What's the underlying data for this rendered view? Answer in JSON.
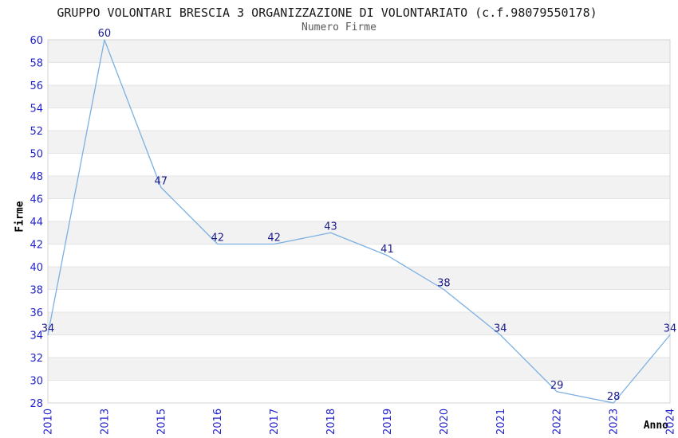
{
  "chart_data": {
    "type": "line",
    "title": "GRUPPO VOLONTARI BRESCIA 3 ORGANIZZAZIONE DI VOLONTARIATO (c.f.98079550178)",
    "subtitle": "Numero Firme",
    "xlabel": "Anno",
    "ylabel": "Firme",
    "categories": [
      "2010",
      "2013",
      "2015",
      "2016",
      "2017",
      "2018",
      "2019",
      "2020",
      "2021",
      "2022",
      "2023",
      "2024"
    ],
    "values": [
      34,
      60,
      47,
      42,
      42,
      43,
      41,
      38,
      34,
      29,
      28,
      34
    ],
    "ylim": [
      28,
      60
    ],
    "ytick_step": 2,
    "grid": "horizontal-alternating-bands",
    "legend": "none",
    "show_point_labels": true,
    "colors": {
      "line": "#7cb0e2",
      "tick_label": "#2424cc",
      "data_label": "#1b1b8a",
      "band": "#f2f2f2",
      "gridline": "#e4e4e4",
      "border": "#d4d4d4",
      "title": "#1a1a1a",
      "subtitle": "#595959",
      "axis_label": "#000000"
    }
  }
}
